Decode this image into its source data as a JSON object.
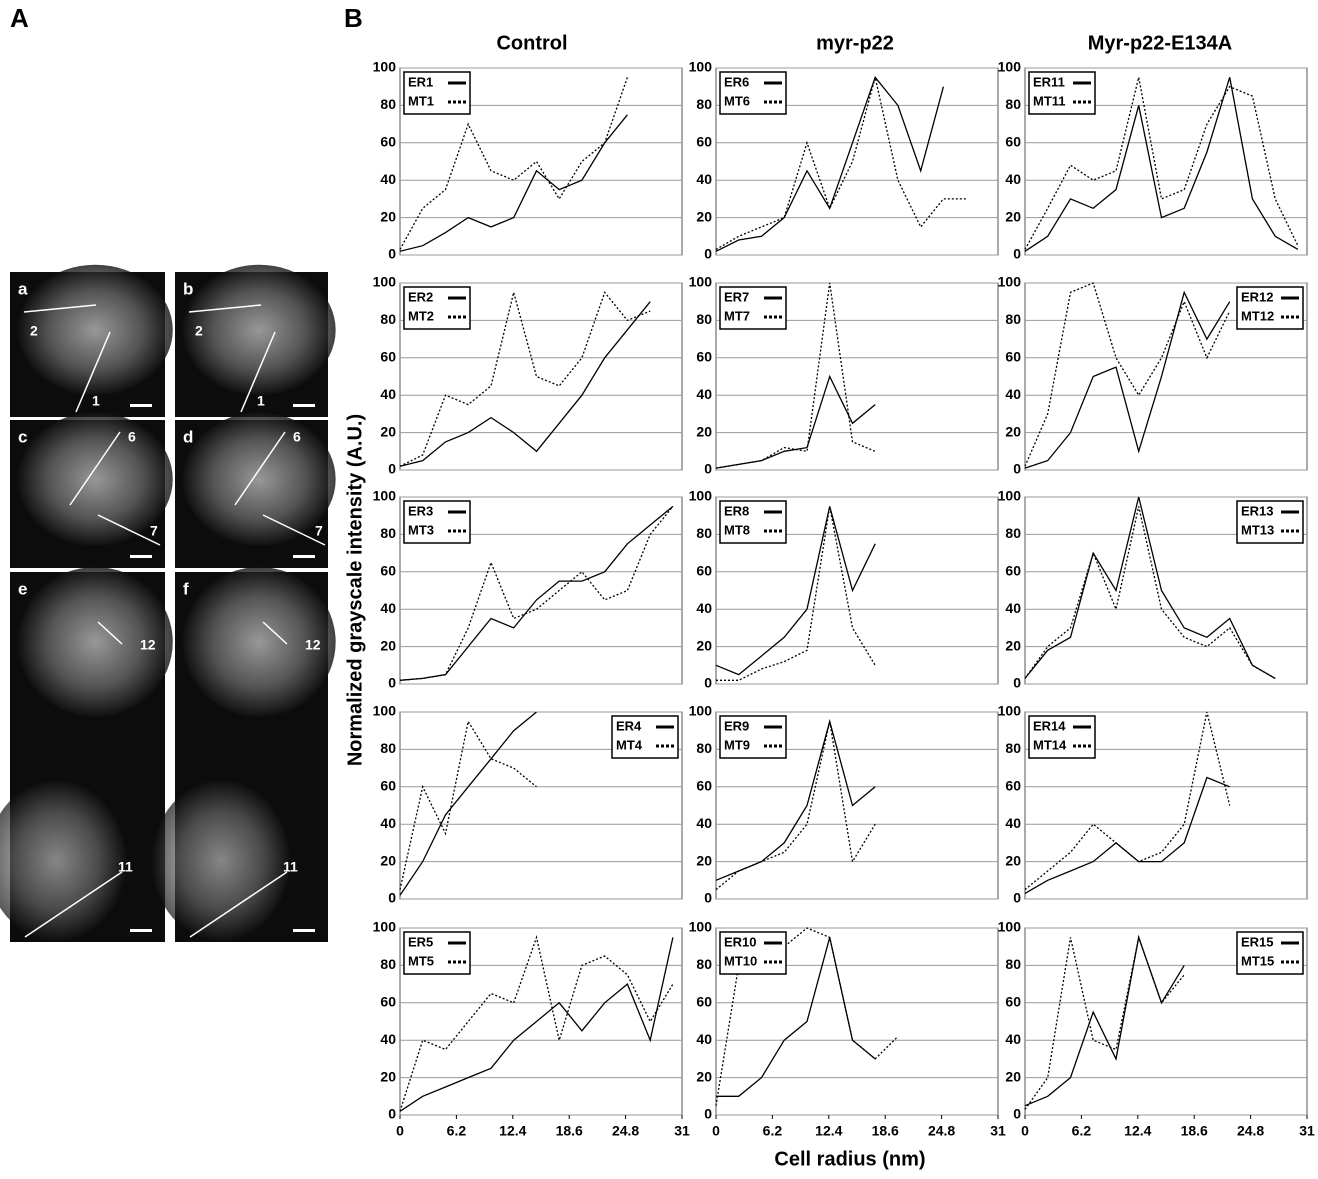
{
  "panel_labels": [
    "A",
    "B"
  ],
  "micrographs": [
    {
      "label": "a",
      "line_labels": [
        "2",
        "1"
      ]
    },
    {
      "label": "b",
      "line_labels": [
        "2",
        "1"
      ]
    },
    {
      "label": "c",
      "line_labels": [
        "6",
        "7"
      ]
    },
    {
      "label": "d",
      "line_labels": [
        "6",
        "7"
      ]
    },
    {
      "label": "e",
      "line_labels": [
        "12",
        "11"
      ]
    },
    {
      "label": "f",
      "line_labels": [
        "12",
        "11"
      ]
    }
  ],
  "column_titles": [
    "Control",
    "myr-p22",
    "Myr-p22-E134A"
  ],
  "y_axis_label": "Normalized grayscale intensity (A.U.)",
  "x_axis_label": "Cell radius (nm)",
  "chart_data": [
    {
      "type": "line",
      "x": [
        0,
        2.5,
        5,
        7.5,
        10,
        12.5,
        15,
        17.5,
        20,
        22.5,
        25,
        27.5,
        30
      ],
      "xlim": [
        0,
        31
      ],
      "ylim": [
        0,
        100
      ],
      "yticks": [
        0,
        20,
        40,
        60,
        80,
        100
      ],
      "grid": true,
      "legend": "upper left",
      "series": [
        {
          "name": "ER1",
          "color": "#000",
          "dash": "solid",
          "values": [
            2,
            5,
            12,
            20,
            15,
            20,
            45,
            35,
            40,
            60,
            75,
            null,
            null
          ]
        },
        {
          "name": "MT1",
          "color": "#000",
          "dash": "dotted",
          "values": [
            3,
            25,
            35,
            70,
            45,
            40,
            50,
            30,
            50,
            60,
            95,
            null,
            null
          ]
        }
      ]
    },
    {
      "type": "line",
      "x": [
        0,
        2.5,
        5,
        7.5,
        10,
        12.5,
        15,
        17.5,
        20,
        22.5,
        25,
        27.5,
        30
      ],
      "xlim": [
        0,
        31
      ],
      "ylim": [
        0,
        100
      ],
      "yticks": [
        0,
        20,
        40,
        60,
        80,
        100
      ],
      "grid": true,
      "legend": "upper left",
      "series": [
        {
          "name": "ER6",
          "color": "#000",
          "dash": "solid",
          "values": [
            2,
            8,
            10,
            20,
            45,
            25,
            60,
            95,
            80,
            45,
            90,
            null,
            null
          ]
        },
        {
          "name": "MT6",
          "color": "#000",
          "dash": "dotted",
          "values": [
            3,
            10,
            15,
            20,
            60,
            25,
            50,
            95,
            40,
            15,
            30,
            30,
            null
          ]
        }
      ]
    },
    {
      "type": "line",
      "x": [
        0,
        2.5,
        5,
        7.5,
        10,
        12.5,
        15,
        17.5,
        20,
        22.5,
        25,
        27.5,
        30
      ],
      "xlim": [
        0,
        31
      ],
      "ylim": [
        0,
        100
      ],
      "yticks": [
        0,
        20,
        40,
        60,
        80,
        100
      ],
      "grid": true,
      "legend": "upper left",
      "series": [
        {
          "name": "ER11",
          "color": "#000",
          "dash": "solid",
          "values": [
            2,
            10,
            30,
            25,
            35,
            80,
            20,
            25,
            55,
            95,
            30,
            10,
            3
          ]
        },
        {
          "name": "MT11",
          "color": "#000",
          "dash": "dotted",
          "values": [
            3,
            25,
            48,
            40,
            45,
            95,
            30,
            35,
            70,
            90,
            85,
            30,
            5
          ]
        }
      ]
    },
    {
      "type": "line",
      "x": [
        0,
        2.5,
        5,
        7.5,
        10,
        12.5,
        15,
        17.5,
        20,
        22.5,
        25,
        27.5,
        30
      ],
      "xlim": [
        0,
        31
      ],
      "ylim": [
        0,
        100
      ],
      "yticks": [
        0,
        20,
        40,
        60,
        80,
        100
      ],
      "grid": true,
      "legend": "upper left",
      "series": [
        {
          "name": "ER2",
          "color": "#000",
          "dash": "solid",
          "values": [
            2,
            5,
            15,
            20,
            28,
            20,
            10,
            25,
            40,
            60,
            75,
            90,
            null
          ]
        },
        {
          "name": "MT2",
          "color": "#000",
          "dash": "dotted",
          "values": [
            2,
            8,
            40,
            35,
            45,
            95,
            50,
            45,
            60,
            95,
            80,
            85,
            null
          ]
        }
      ]
    },
    {
      "type": "line",
      "x": [
        0,
        2.5,
        5,
        7.5,
        10,
        12.5,
        15,
        17.5,
        20,
        22.5,
        25,
        27.5,
        30
      ],
      "xlim": [
        0,
        31
      ],
      "ylim": [
        0,
        100
      ],
      "yticks": [
        0,
        20,
        40,
        60,
        80,
        100
      ],
      "grid": true,
      "legend": "upper left",
      "series": [
        {
          "name": "ER7",
          "color": "#000",
          "dash": "solid",
          "values": [
            1,
            3,
            5,
            10,
            12,
            50,
            25,
            35,
            null,
            null,
            null,
            null,
            null
          ]
        },
        {
          "name": "MT7",
          "color": "#000",
          "dash": "dotted",
          "values": [
            1,
            3,
            5,
            12,
            10,
            100,
            15,
            10,
            null,
            null,
            null,
            null,
            null
          ]
        }
      ]
    },
    {
      "type": "line",
      "x": [
        0,
        2.5,
        5,
        7.5,
        10,
        12.5,
        15,
        17.5,
        20,
        22.5,
        25,
        27.5,
        30
      ],
      "xlim": [
        0,
        31
      ],
      "ylim": [
        0,
        100
      ],
      "yticks": [
        0,
        20,
        40,
        60,
        80,
        100
      ],
      "grid": true,
      "legend": "upper right",
      "series": [
        {
          "name": "ER12",
          "color": "#000",
          "dash": "solid",
          "values": [
            1,
            5,
            20,
            50,
            55,
            10,
            50,
            95,
            70,
            90,
            null,
            null,
            null
          ]
        },
        {
          "name": "MT12",
          "color": "#000",
          "dash": "dotted",
          "values": [
            2,
            30,
            95,
            100,
            60,
            40,
            60,
            90,
            60,
            85,
            null,
            null,
            null
          ]
        }
      ]
    },
    {
      "type": "line",
      "x": [
        0,
        2.5,
        5,
        7.5,
        10,
        12.5,
        15,
        17.5,
        20,
        22.5,
        25,
        27.5,
        30
      ],
      "xlim": [
        0,
        31
      ],
      "ylim": [
        0,
        100
      ],
      "yticks": [
        0,
        20,
        40,
        60,
        80,
        100
      ],
      "grid": true,
      "legend": "upper left",
      "series": [
        {
          "name": "ER3",
          "color": "#000",
          "dash": "solid",
          "values": [
            2,
            3,
            5,
            20,
            35,
            30,
            45,
            55,
            55,
            60,
            75,
            85,
            95
          ]
        },
        {
          "name": "MT3",
          "color": "#000",
          "dash": "dotted",
          "values": [
            2,
            3,
            5,
            30,
            65,
            35,
            40,
            50,
            60,
            45,
            50,
            80,
            95
          ]
        }
      ]
    },
    {
      "type": "line",
      "x": [
        0,
        2.5,
        5,
        7.5,
        10,
        12.5,
        15,
        17.5,
        20,
        22.5,
        25,
        27.5,
        30
      ],
      "xlim": [
        0,
        31
      ],
      "ylim": [
        0,
        100
      ],
      "yticks": [
        0,
        20,
        40,
        60,
        80,
        100
      ],
      "grid": true,
      "legend": "upper left",
      "series": [
        {
          "name": "ER8",
          "color": "#000",
          "dash": "solid",
          "values": [
            10,
            5,
            15,
            25,
            40,
            95,
            50,
            75,
            null,
            null,
            null,
            null,
            null
          ]
        },
        {
          "name": "MT8",
          "color": "#000",
          "dash": "dotted",
          "values": [
            2,
            2,
            8,
            12,
            18,
            95,
            30,
            10,
            null,
            null,
            null,
            null,
            null
          ]
        }
      ]
    },
    {
      "type": "line",
      "x": [
        0,
        2.5,
        5,
        7.5,
        10,
        12.5,
        15,
        17.5,
        20,
        22.5,
        25,
        27.5,
        30
      ],
      "xlim": [
        0,
        31
      ],
      "ylim": [
        0,
        100
      ],
      "yticks": [
        0,
        20,
        40,
        60,
        80,
        100
      ],
      "grid": true,
      "legend": "upper right",
      "series": [
        {
          "name": "ER13",
          "color": "#000",
          "dash": "solid",
          "values": [
            3,
            18,
            25,
            70,
            50,
            100,
            50,
            30,
            25,
            35,
            10,
            3,
            null
          ]
        },
        {
          "name": "MT13",
          "color": "#000",
          "dash": "dotted",
          "values": [
            3,
            20,
            30,
            70,
            40,
            95,
            40,
            25,
            20,
            30,
            10,
            3,
            null
          ]
        }
      ]
    },
    {
      "type": "line",
      "x": [
        0,
        2.5,
        5,
        7.5,
        10,
        12.5,
        15,
        17.5,
        20,
        22.5,
        25,
        27.5,
        30
      ],
      "xlim": [
        0,
        31
      ],
      "ylim": [
        0,
        100
      ],
      "yticks": [
        0,
        20,
        40,
        60,
        80,
        100
      ],
      "grid": true,
      "legend": "upper right",
      "series": [
        {
          "name": "ER4",
          "color": "#000",
          "dash": "solid",
          "values": [
            2,
            20,
            45,
            60,
            75,
            90,
            100,
            null,
            null,
            null,
            null,
            null,
            null
          ]
        },
        {
          "name": "MT4",
          "color": "#000",
          "dash": "dotted",
          "values": [
            5,
            60,
            35,
            95,
            75,
            70,
            60,
            null,
            null,
            null,
            null,
            null,
            null
          ]
        }
      ]
    },
    {
      "type": "line",
      "x": [
        0,
        2.5,
        5,
        7.5,
        10,
        12.5,
        15,
        17.5,
        20,
        22.5,
        25,
        27.5,
        30
      ],
      "xlim": [
        0,
        31
      ],
      "ylim": [
        0,
        100
      ],
      "yticks": [
        0,
        20,
        40,
        60,
        80,
        100
      ],
      "grid": true,
      "legend": "upper left",
      "series": [
        {
          "name": "ER9",
          "color": "#000",
          "dash": "solid",
          "values": [
            10,
            15,
            20,
            30,
            50,
            95,
            50,
            60,
            null,
            null,
            null,
            null,
            null
          ]
        },
        {
          "name": "MT9",
          "color": "#000",
          "dash": "dotted",
          "values": [
            5,
            15,
            20,
            25,
            40,
            95,
            20,
            40,
            null,
            null,
            null,
            null,
            null
          ]
        }
      ]
    },
    {
      "type": "line",
      "x": [
        0,
        2.5,
        5,
        7.5,
        10,
        12.5,
        15,
        17.5,
        20,
        22.5,
        25,
        27.5,
        30
      ],
      "xlim": [
        0,
        31
      ],
      "ylim": [
        0,
        100
      ],
      "yticks": [
        0,
        20,
        40,
        60,
        80,
        100
      ],
      "grid": true,
      "legend": "upper left",
      "series": [
        {
          "name": "ER14",
          "color": "#000",
          "dash": "solid",
          "values": [
            3,
            10,
            15,
            20,
            30,
            20,
            20,
            30,
            65,
            60,
            null,
            null,
            null
          ]
        },
        {
          "name": "MT14",
          "color": "#000",
          "dash": "dotted",
          "values": [
            5,
            15,
            25,
            40,
            30,
            20,
            25,
            40,
            100,
            50,
            null,
            null,
            null
          ]
        }
      ]
    },
    {
      "type": "line",
      "x": [
        0,
        2.5,
        5,
        7.5,
        10,
        12.5,
        15,
        17.5,
        20,
        22.5,
        25,
        27.5,
        30
      ],
      "xlim": [
        0,
        31
      ],
      "xticks": [
        0,
        6.2,
        12.4,
        18.6,
        24.8,
        31
      ],
      "ylim": [
        0,
        100
      ],
      "yticks": [
        0,
        20,
        40,
        60,
        80,
        100
      ],
      "grid": true,
      "legend": "upper left",
      "series": [
        {
          "name": "ER5",
          "color": "#000",
          "dash": "solid",
          "values": [
            2,
            10,
            15,
            20,
            25,
            40,
            50,
            60,
            45,
            60,
            70,
            40,
            95
          ]
        },
        {
          "name": "MT5",
          "color": "#000",
          "dash": "dotted",
          "values": [
            2,
            40,
            35,
            50,
            65,
            60,
            95,
            40,
            80,
            85,
            75,
            50,
            70
          ]
        }
      ]
    },
    {
      "type": "line",
      "x": [
        0,
        2.5,
        5,
        7.5,
        10,
        12.5,
        15,
        17.5,
        20,
        22.5,
        25,
        27.5,
        30
      ],
      "xlim": [
        0,
        31
      ],
      "xticks": [
        0,
        6.2,
        12.4,
        18.6,
        24.8,
        31
      ],
      "ylim": [
        0,
        100
      ],
      "yticks": [
        0,
        20,
        40,
        60,
        80,
        100
      ],
      "grid": true,
      "legend": "upper left",
      "series": [
        {
          "name": "ER10",
          "color": "#000",
          "dash": "solid",
          "values": [
            10,
            10,
            20,
            40,
            50,
            95,
            40,
            30,
            null,
            null,
            null,
            null,
            null
          ]
        },
        {
          "name": "MT10",
          "color": "#000",
          "dash": "dotted",
          "values": [
            5,
            80,
            85,
            90,
            100,
            95,
            40,
            30,
            42,
            null,
            null,
            null,
            null
          ]
        }
      ]
    },
    {
      "type": "line",
      "x": [
        0,
        2.5,
        5,
        7.5,
        10,
        12.5,
        15,
        17.5,
        20,
        22.5,
        25,
        27.5,
        30
      ],
      "xlim": [
        0,
        31
      ],
      "xticks": [
        0,
        6.2,
        12.4,
        18.6,
        24.8,
        31
      ],
      "ylim": [
        0,
        100
      ],
      "yticks": [
        0,
        20,
        40,
        60,
        80,
        100
      ],
      "grid": true,
      "legend": "upper right",
      "series": [
        {
          "name": "ER15",
          "color": "#000",
          "dash": "solid",
          "values": [
            5,
            10,
            20,
            55,
            30,
            95,
            60,
            80,
            null,
            null,
            null,
            null,
            null
          ]
        },
        {
          "name": "MT15",
          "color": "#000",
          "dash": "dotted",
          "values": [
            3,
            20,
            95,
            40,
            35,
            95,
            60,
            75,
            null,
            null,
            null,
            null,
            null
          ]
        }
      ]
    }
  ]
}
